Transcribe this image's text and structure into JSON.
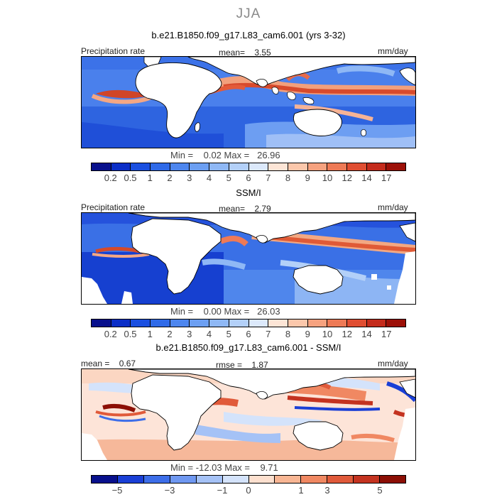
{
  "season": "JJA",
  "panels": [
    {
      "title": "b.e21.B1850.f09_g17.L83_cam6.001 (yrs 3-32)",
      "left_label": "Precipitation rate",
      "stat_text": "mean=    3.55",
      "units": "mm/day",
      "minmax": "Min =    0.02 Max =   26.96",
      "ticks": [
        "0.2",
        "0.5",
        "1",
        "2",
        "3",
        "4",
        "5",
        "6",
        "7",
        "8",
        "9",
        "10",
        "12",
        "14",
        "17"
      ]
    },
    {
      "title": "SSM/I",
      "left_label": "Precipitation rate",
      "stat_text": "mean=    2.79",
      "units": "mm/day",
      "minmax": "Min =    0.00 Max =   26.03",
      "ticks": [
        "0.2",
        "0.5",
        "1",
        "2",
        "3",
        "4",
        "5",
        "6",
        "7",
        "8",
        "9",
        "10",
        "12",
        "14",
        "17"
      ]
    },
    {
      "title": "b.e21.B1850.f09_g17.L83_cam6.001 - SSM/I",
      "left_label": "mean =    0.67",
      "stat_text": "rmse =    1.87",
      "units": "mm/day",
      "minmax": "Min = -12.03 Max =    9.71",
      "ticks": [
        "−5",
        "−3",
        "−1",
        "0",
        "1",
        "3",
        "5"
      ]
    }
  ],
  "colors": {
    "precip_scale": [
      "#08108c",
      "#0b2ec7",
      "#1a4fe0",
      "#2f6ae8",
      "#4d86ee",
      "#6c9ff2",
      "#8fb8f5",
      "#b3d0f8",
      "#dce9fb",
      "#fde5d6",
      "#fbc7ab",
      "#f6a27f",
      "#ee7a56",
      "#e04e32",
      "#c42b1c",
      "#9c1008"
    ],
    "diff_scale": [
      "#08108c",
      "#1a3fd6",
      "#3d6ee9",
      "#6f98f1",
      "#a5c2f6",
      "#d4e3fb",
      "#fde0cf",
      "#f8b694",
      "#f08862",
      "#e05a3a",
      "#c43320",
      "#8c0f05"
    ],
    "land": "#ffffff",
    "coast": "#000000"
  }
}
